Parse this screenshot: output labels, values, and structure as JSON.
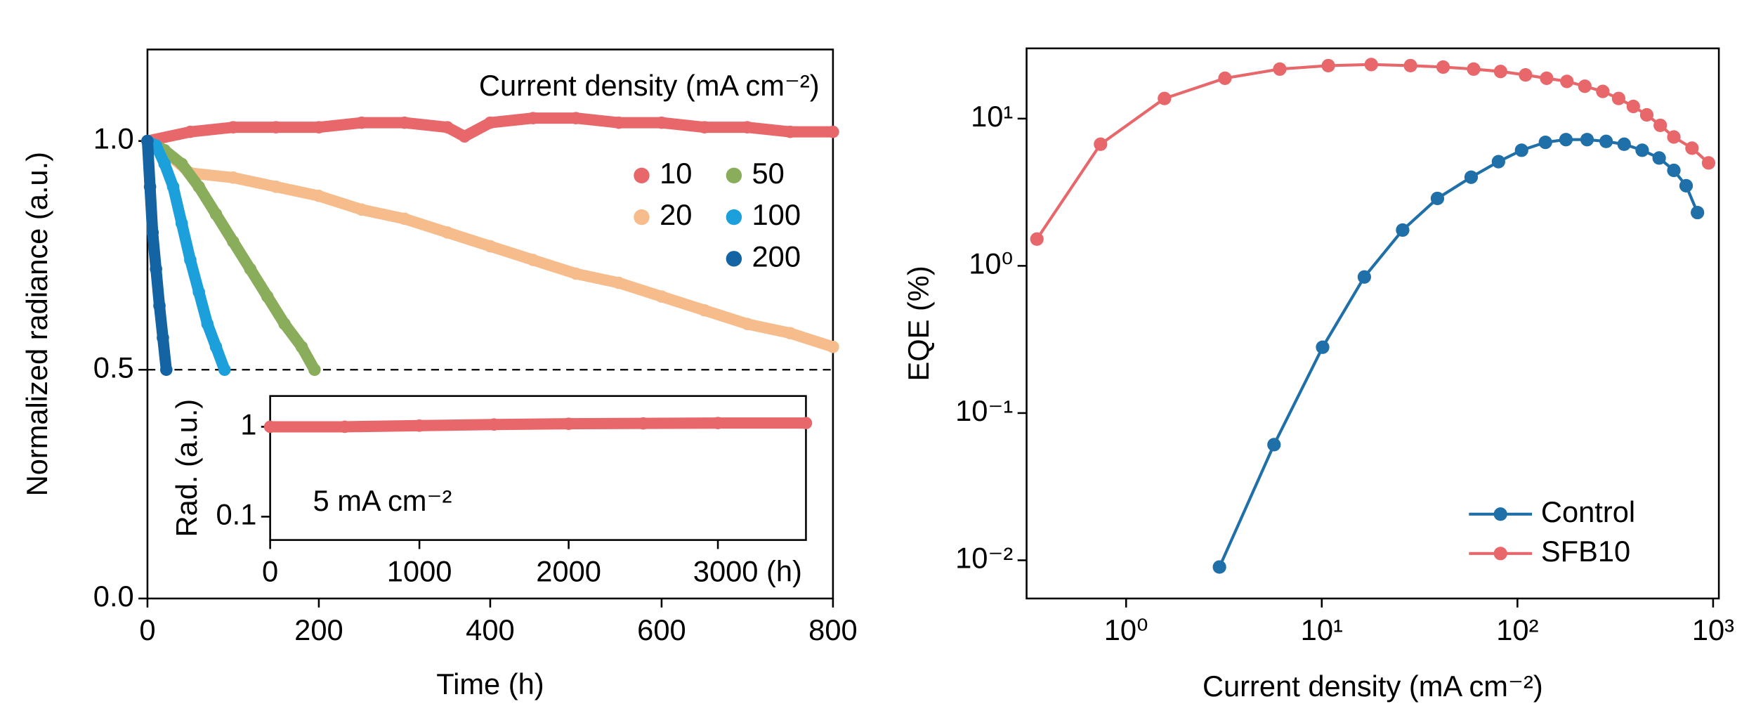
{
  "chart_data": [
    {
      "type": "scatter",
      "xlabel": "Time (h)",
      "ylabel": "Normalized radiance (a.u.)",
      "xlim": [
        0,
        800
      ],
      "xticks": [
        0,
        200,
        400,
        600,
        800
      ],
      "ylim": [
        0,
        1.2
      ],
      "yticks": [
        {
          "value": 0,
          "label": "0.0"
        },
        0.5,
        {
          "value": 1.0,
          "label": "1.0"
        }
      ],
      "hline": 0.5,
      "legend": "upper right",
      "legend_title": "Current density (mA cm⁻²)",
      "series": [
        {
          "name": "10",
          "color": "#e8676b",
          "x": [
            0,
            50,
            100,
            150,
            200,
            250,
            300,
            350,
            370,
            400,
            450,
            500,
            550,
            600,
            650,
            700,
            750,
            800
          ],
          "values": [
            1.0,
            1.02,
            1.03,
            1.03,
            1.03,
            1.04,
            1.04,
            1.03,
            1.01,
            1.04,
            1.05,
            1.05,
            1.04,
            1.04,
            1.03,
            1.03,
            1.02,
            1.02
          ]
        },
        {
          "name": "20",
          "color": "#f7bc8c",
          "x": [
            0,
            25,
            50,
            100,
            150,
            200,
            250,
            300,
            350,
            400,
            450,
            500,
            550,
            600,
            650,
            700,
            750,
            800
          ],
          "values": [
            1.0,
            0.97,
            0.93,
            0.92,
            0.9,
            0.88,
            0.85,
            0.83,
            0.8,
            0.77,
            0.74,
            0.71,
            0.69,
            0.66,
            0.63,
            0.6,
            0.58,
            0.55
          ]
        },
        {
          "name": "50",
          "color": "#8aad5c",
          "x": [
            0,
            20,
            40,
            60,
            80,
            100,
            120,
            140,
            160,
            180,
            195
          ],
          "values": [
            1.0,
            0.98,
            0.95,
            0.9,
            0.84,
            0.78,
            0.72,
            0.66,
            0.6,
            0.55,
            0.5
          ]
        },
        {
          "name": "100",
          "color": "#1ba0dc",
          "x": [
            0,
            10,
            20,
            30,
            40,
            50,
            60,
            70,
            80,
            90
          ],
          "values": [
            1.0,
            0.99,
            0.95,
            0.9,
            0.82,
            0.74,
            0.67,
            0.6,
            0.55,
            0.5
          ]
        },
        {
          "name": "200",
          "color": "#1463a3",
          "x": [
            0,
            3,
            6,
            10,
            14,
            18,
            22
          ],
          "values": [
            1.0,
            0.9,
            0.8,
            0.72,
            0.64,
            0.57,
            0.5
          ]
        }
      ]
    },
    {
      "type": "scatter",
      "ylabel": "Rad. (a.u.)",
      "annotation": "5 mA cm⁻²",
      "yscale": "log",
      "xlim": [
        0,
        3590
      ],
      "xticks": [
        0,
        1000,
        2000,
        {
          "value": 3000,
          "label": "3000 (h)"
        }
      ],
      "ylim": [
        0.055,
        2.2
      ],
      "yticks": [
        0.1,
        1
      ],
      "series": [
        {
          "color": "#e8676b",
          "x": [
            0,
            500,
            1000,
            1500,
            2000,
            2500,
            3000,
            3590
          ],
          "values": [
            1.0,
            1.0,
            1.03,
            1.06,
            1.08,
            1.09,
            1.1,
            1.1
          ]
        }
      ]
    },
    {
      "type": "line",
      "xlabel": "Current density (mA cm⁻²)",
      "ylabel": "EQE (%)",
      "xscale": "log",
      "yscale": "log",
      "xlim": [
        0.31,
        1070
      ],
      "xticks": [
        {
          "value": 1,
          "label": "10⁰"
        },
        {
          "value": 10,
          "label": "10¹"
        },
        {
          "value": 100,
          "label": "10²"
        },
        {
          "value": 1000,
          "label": "10³"
        }
      ],
      "ylim": [
        0.0055,
        30
      ],
      "yticks": [
        {
          "value": 0.01,
          "label": "10⁻²"
        },
        {
          "value": 0.1,
          "label": "10⁻¹"
        },
        {
          "value": 1,
          "label": "10⁰"
        },
        {
          "value": 10,
          "label": "10¹"
        }
      ],
      "legend": "lower right",
      "series": [
        {
          "name": "Control",
          "color": "#1f6fa8",
          "x": [
            3.0,
            5.7,
            10.1,
            16.5,
            25.9,
            39,
            58,
            80,
            105,
            139,
            177,
            227,
            284,
            351,
            434,
            530,
            630,
            728,
            832
          ],
          "values": [
            0.009,
            0.061,
            0.28,
            0.84,
            1.75,
            2.87,
            4.0,
            5.1,
            6.1,
            6.9,
            7.2,
            7.2,
            7.0,
            6.7,
            6.1,
            5.4,
            4.45,
            3.5,
            2.3
          ]
        },
        {
          "name": "SFB10",
          "color": "#e8676b",
          "x": [
            0.35,
            0.74,
            1.57,
            3.2,
            6.1,
            10.8,
            17.9,
            28.4,
            41.7,
            59.7,
            82,
            110,
            141,
            179,
            221,
            273,
            329,
            391,
            458,
            537,
            630,
            780,
            948
          ],
          "values": [
            1.52,
            6.7,
            13.7,
            18.8,
            21.7,
            22.9,
            23.3,
            22.9,
            22.4,
            21.7,
            20.9,
            19.8,
            18.8,
            17.9,
            16.6,
            15.3,
            13.7,
            12.1,
            10.6,
            9.0,
            7.5,
            6.3,
            5.0
          ]
        }
      ]
    }
  ]
}
